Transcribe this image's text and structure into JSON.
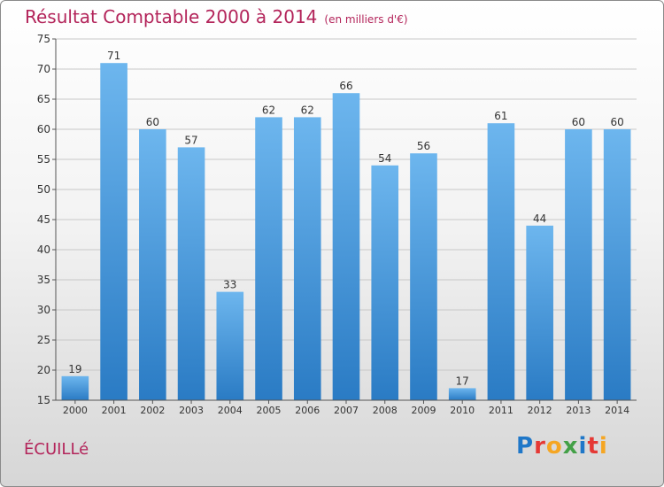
{
  "header": {
    "title": "Résultat Comptable 2000 à 2014",
    "subtitle": "(en milliers d'€)"
  },
  "footer": {
    "place": "ÉCUILLé",
    "logo": "Proxiti",
    "logo_colors": [
      "#1f77c8",
      "#e53935",
      "#f5a623",
      "#43a047",
      "#1f77c8",
      "#e53935",
      "#f5a623"
    ]
  },
  "colors": {
    "title": "#b3245a",
    "bar_light": "#6db6ee",
    "bar_dark": "#2a7bc4"
  },
  "chart_data": {
    "type": "bar",
    "title": "Résultat Comptable 2000 à 2014",
    "categories": [
      "2000",
      "2001",
      "2002",
      "2003",
      "2004",
      "2005",
      "2006",
      "2007",
      "2008",
      "2009",
      "2010",
      "2011",
      "2012",
      "2013",
      "2014"
    ],
    "values": [
      19,
      71,
      60,
      57,
      33,
      62,
      62,
      66,
      54,
      56,
      17,
      61,
      44,
      60,
      60
    ],
    "ylim": [
      15,
      75
    ],
    "yticks": [
      15,
      20,
      25,
      30,
      35,
      40,
      45,
      50,
      55,
      60,
      65,
      70,
      75
    ],
    "grid": true
  }
}
